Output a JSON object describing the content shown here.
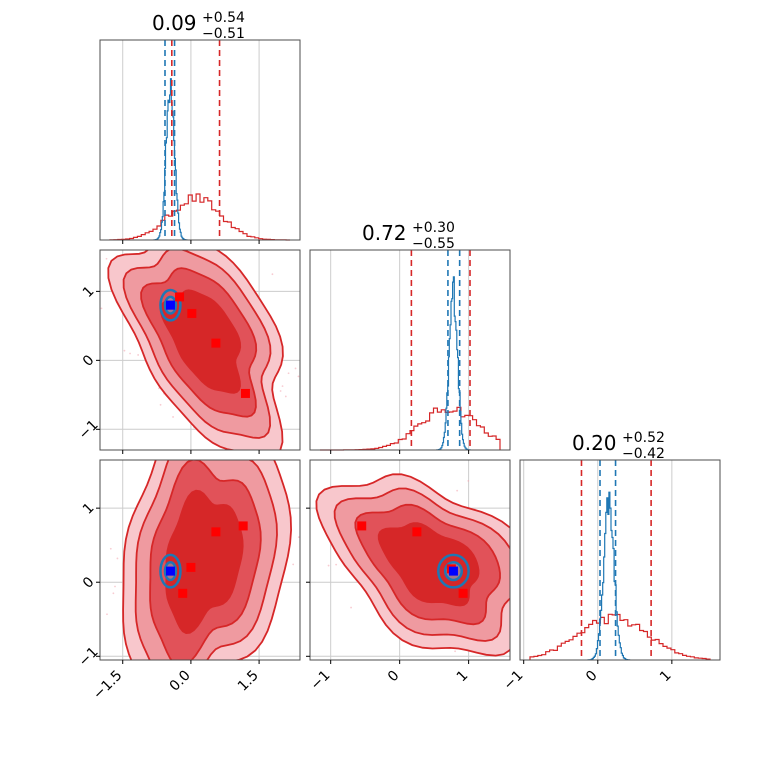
{
  "chart_data": {
    "type": "corner",
    "colors": {
      "broad": "#d62728",
      "narrow": "#1f77b4",
      "truth": "#0000ff",
      "points": "#ff0000"
    },
    "parameters": [
      {
        "index": 0,
        "title": {
          "value": "0.09",
          "plus": "+0.54",
          "minus": "−0.51"
        },
        "range": [
          -2.0,
          2.4
        ],
        "ticks": [
          {
            "v": -1.5,
            "label": "−1.5"
          },
          {
            "v": 0.0,
            "label": "0.0"
          },
          {
            "v": 1.5,
            "label": "1.5"
          }
        ],
        "broad": {
          "mean": 0.09,
          "sd": 0.55,
          "quantiles": [
            -0.42,
            0.63
          ]
        },
        "narrow": {
          "mean": -0.45,
          "sd": 0.09,
          "quantiles": [
            -0.57,
            -0.36
          ]
        },
        "markers": [
          -0.45
        ]
      },
      {
        "index": 1,
        "title": {
          "value": "0.72",
          "plus": "+0.30",
          "minus": "−0.55"
        },
        "range": [
          -1.3,
          1.6
        ],
        "ticks": [
          {
            "v": -1,
            "label": "−1"
          },
          {
            "v": 0,
            "label": "0"
          },
          {
            "v": 1,
            "label": "1"
          }
        ],
        "broad": {
          "mean": 0.72,
          "sd": 0.42,
          "quantiles": [
            0.17,
            1.02
          ]
        },
        "narrow": {
          "mean": 0.78,
          "sd": 0.06,
          "quantiles": [
            0.7,
            0.87
          ]
        },
        "markers": [
          0.78
        ]
      },
      {
        "index": 2,
        "title": {
          "value": "0.20",
          "plus": "+0.52",
          "minus": "−0.42"
        },
        "range": [
          -1.05,
          1.65
        ],
        "ticks": [
          {
            "v": -1,
            "label": "−1"
          },
          {
            "v": 0,
            "label": "0"
          },
          {
            "v": 1,
            "label": "1"
          }
        ],
        "broad": {
          "mean": 0.2,
          "sd": 0.47,
          "quantiles": [
            -0.22,
            0.72
          ]
        },
        "narrow": {
          "mean": 0.15,
          "sd": 0.07,
          "quantiles": [
            0.03,
            0.24
          ]
        },
        "markers": [
          0.15
        ]
      }
    ],
    "joint": [
      {
        "x": 0,
        "y": 1,
        "cx": 0.3,
        "cy": 0.3,
        "rx": 0.95,
        "ry": 0.55,
        "rot": -38,
        "levels": [
          1.0,
          1.45,
          1.85,
          2.2
        ],
        "narrow": {
          "cx": -0.45,
          "cy": 0.8,
          "r": [
            0.12,
            0.22
          ]
        },
        "truth": [
          -0.45,
          0.8
        ],
        "red_points": [
          [
            -0.25,
            0.92
          ],
          [
            0.02,
            0.68
          ],
          [
            0.55,
            0.25
          ],
          [
            1.2,
            -0.48
          ]
        ]
      },
      {
        "x": 0,
        "y": 2,
        "cx": 0.25,
        "cy": 0.3,
        "rx": 0.95,
        "ry": 0.75,
        "rot": 50,
        "levels": [
          1.0,
          1.45,
          1.85,
          2.2
        ],
        "narrow": {
          "cx": -0.45,
          "cy": 0.15,
          "r": [
            0.12,
            0.22
          ]
        },
        "truth": [
          -0.45,
          0.15
        ],
        "red_points": [
          [
            0.55,
            0.68
          ],
          [
            1.15,
            0.76
          ],
          [
            0.0,
            0.2
          ],
          [
            -0.18,
            -0.15
          ]
        ]
      },
      {
        "x": 1,
        "y": 2,
        "cx": 0.45,
        "cy": 0.25,
        "rx": 0.75,
        "ry": 0.45,
        "rot": -30,
        "levels": [
          1.0,
          1.45,
          1.85,
          2.2
        ],
        "narrow": {
          "cx": 0.78,
          "cy": 0.15,
          "r": [
            0.12,
            0.22
          ]
        },
        "truth": [
          0.78,
          0.15
        ],
        "red_points": [
          [
            -0.55,
            0.76
          ],
          [
            0.25,
            0.68
          ],
          [
            0.75,
            0.18
          ],
          [
            0.92,
            -0.15
          ]
        ]
      }
    ]
  }
}
